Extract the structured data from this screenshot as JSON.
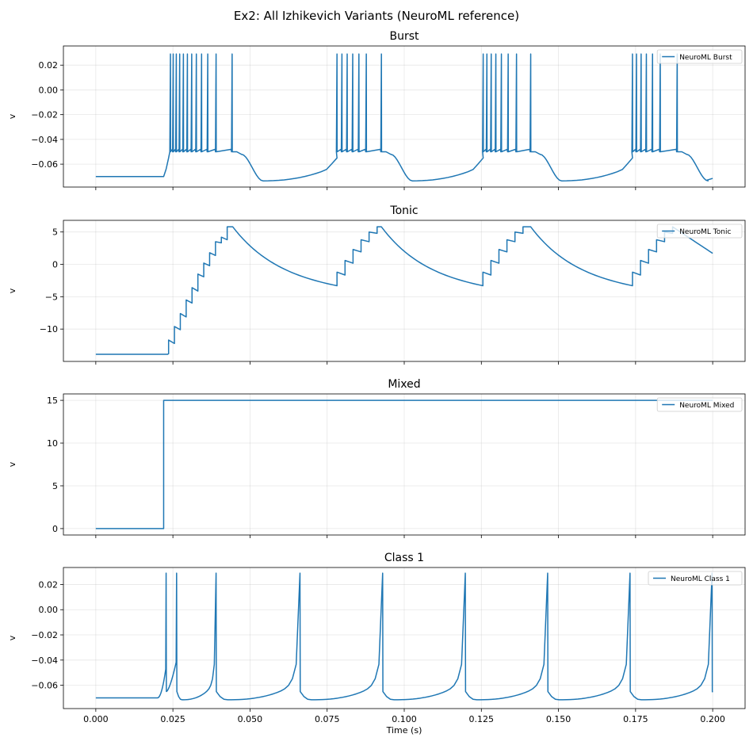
{
  "figure": {
    "title": "Ex2: All Izhikevich Variants (NeuroML reference)",
    "xlabel": "Time (s)",
    "line_color": "#1f77b4",
    "grid": true
  },
  "chart_data": [
    {
      "type": "line",
      "title": "Burst",
      "ylabel": "v",
      "xlim": [
        -0.0105,
        0.2105
      ],
      "ylim": [
        -0.0785,
        0.0355
      ],
      "xticks": [
        0.0,
        0.025,
        0.05,
        0.075,
        0.1,
        0.125,
        0.15,
        0.175,
        0.2
      ],
      "xtick_labels": [],
      "yticks": [
        -0.06,
        -0.04,
        -0.02,
        0.0,
        0.02
      ],
      "ytick_labels": [
        "−0.06",
        "−0.04",
        "−0.02",
        "0.00",
        "0.02"
      ],
      "legend": {
        "label": "NeuroML Burst",
        "placement": "top-right"
      },
      "series": [
        {
          "name": "NeuroML Burst",
          "model": "burst",
          "rest": -0.07,
          "onset": 0.022,
          "baseline_end": -0.05,
          "peak": 0.029,
          "bursts": [
            {
              "spikes": [
                0.0242,
                0.0251,
                0.0261,
                0.0272,
                0.0284,
                0.0297,
                0.0311,
                0.0326,
                0.0343,
                0.0363,
                0.039,
                0.0442
              ]
            },
            {
              "spikes": [
                0.0782,
                0.0798,
                0.0815,
                0.0833,
                0.0853,
                0.0877,
                0.0926
              ]
            },
            {
              "spikes": [
                0.1256,
                0.1268,
                0.1282,
                0.1297,
                0.1315,
                0.1337,
                0.1364,
                0.141
              ]
            },
            {
              "spikes": [
                0.174,
                0.1753,
                0.1768,
                0.1785,
                0.1805,
                0.183,
                0.1885
              ]
            }
          ],
          "trough": -0.0735,
          "end_value": -0.0715
        }
      ]
    },
    {
      "type": "line",
      "title": "Tonic",
      "ylabel": "v",
      "xlim": [
        -0.0105,
        0.2105
      ],
      "ylim": [
        -15.0,
        6.8
      ],
      "xticks": [
        0.0,
        0.025,
        0.05,
        0.075,
        0.1,
        0.125,
        0.15,
        0.175,
        0.2
      ],
      "xtick_labels": [],
      "yticks": [
        -10,
        -5,
        0,
        5
      ],
      "ytick_labels": [
        "−10",
        "−5",
        "0",
        "5"
      ],
      "legend": {
        "label": "NeuroML Tonic",
        "placement": "top-right"
      },
      "series": [
        {
          "name": "NeuroML Tonic",
          "model": "tonic",
          "rest": -13.9,
          "first_step": {
            "t": 0.0236,
            "levels": [
              -11.7,
              -9.6,
              -7.6,
              -5.5,
              -3.6,
              -1.5,
              0.2,
              1.8,
              3.5,
              4.2,
              5.8
            ],
            "dt": 0.0019
          },
          "cycles": [
            {
              "decay_start": 0.0444,
              "decay_end": 0.0782,
              "low": -3.3,
              "levels": [
                -1.2,
                0.6,
                2.3,
                3.8,
                5.0,
                5.8
              ],
              "dt": 0.0026
            },
            {
              "decay_start": 0.0926,
              "decay_end": 0.1255,
              "low": -3.3,
              "levels": [
                -1.2,
                0.6,
                2.3,
                3.8,
                5.0,
                5.8
              ],
              "dt": 0.0026
            },
            {
              "decay_start": 0.141,
              "decay_end": 0.174,
              "low": -3.3,
              "levels": [
                -1.2,
                0.6,
                2.3,
                3.8,
                5.0,
                5.8
              ],
              "dt": 0.0026
            }
          ],
          "end_value": 1.7
        }
      ]
    },
    {
      "type": "line",
      "title": "Mixed",
      "ylabel": "v",
      "xlim": [
        -0.0105,
        0.2105
      ],
      "ylim": [
        -0.75,
        15.75
      ],
      "xticks": [
        0.0,
        0.025,
        0.05,
        0.075,
        0.1,
        0.125,
        0.15,
        0.175,
        0.2
      ],
      "xtick_labels": [],
      "yticks": [
        0,
        5,
        10,
        15
      ],
      "ytick_labels": [
        "0",
        "5",
        "10",
        "15"
      ],
      "legend": {
        "label": "NeuroML Mixed",
        "placement": "top-right"
      },
      "series": [
        {
          "name": "NeuroML Mixed",
          "model": "step",
          "x": [
            0.0,
            0.022,
            0.022,
            0.2
          ],
          "y": [
            0.0,
            0.0,
            15.0,
            15.0
          ]
        }
      ]
    },
    {
      "type": "line",
      "title": "Class 1",
      "ylabel": "v",
      "xlim": [
        -0.0105,
        0.2105
      ],
      "ylim": [
        -0.0785,
        0.0335
      ],
      "xticks": [
        0.0,
        0.025,
        0.05,
        0.075,
        0.1,
        0.125,
        0.15,
        0.175,
        0.2
      ],
      "xtick_labels": [
        "0.000",
        "0.025",
        "0.050",
        "0.075",
        "0.100",
        "0.125",
        "0.150",
        "0.175",
        "0.200"
      ],
      "yticks": [
        -0.06,
        -0.04,
        -0.02,
        0.0,
        0.02
      ],
      "ytick_labels": [
        "−0.06",
        "−0.04",
        "−0.02",
        "0.00",
        "0.02"
      ],
      "legend": {
        "label": "NeuroML Class 1",
        "placement": "top-right"
      },
      "series": [
        {
          "name": "NeuroML Class 1",
          "model": "class1",
          "rest": -0.07,
          "onset": 0.02,
          "peak": 0.029,
          "reset": -0.065,
          "trough": -0.0715,
          "spikes": [
            0.0228,
            0.0262,
            0.039,
            0.0662,
            0.093,
            0.1198,
            0.1465,
            0.1732,
            0.1998
          ],
          "end_value": -0.0655
        }
      ]
    }
  ]
}
